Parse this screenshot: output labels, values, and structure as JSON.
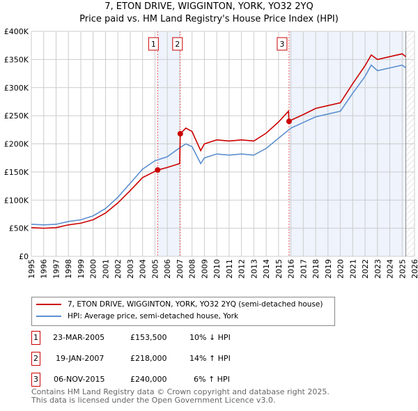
{
  "title": "7, ETON DRIVE, WIGGINTON, YORK, YO32 2YQ",
  "subtitle": "Price paid vs. HM Land Registry's House Price Index (HPI)",
  "legend": {
    "property": "7, ETON DRIVE, WIGGINTON, YORK, YO32 2YQ (semi-detached house)",
    "hpi": "HPI: Average price, semi-detached house, York"
  },
  "transactions": [
    {
      "num": "1",
      "date": "23-MAR-2005",
      "price": "£153,500",
      "hpi": "10% ↓ HPI"
    },
    {
      "num": "2",
      "date": "19-JAN-2007",
      "price": "£218,000",
      "hpi": "14% ↑ HPI"
    },
    {
      "num": "3",
      "date": "06-NOV-2015",
      "price": "£240,000",
      "hpi": "6% ↑ HPI"
    }
  ],
  "footer": {
    "line1": "Contains HM Land Registry data © Crown copyright and database right 2025.",
    "line2": "This data is licensed under the Open Government Licence v3.0."
  },
  "colors": {
    "property": "#cc0000",
    "hpi": "#5b8fd0",
    "shade": "#eef3fc"
  },
  "chart_data": {
    "type": "line",
    "xlim": [
      1995,
      2026
    ],
    "ylim": [
      0,
      400000
    ],
    "yticks": [
      0,
      50000,
      100000,
      150000,
      200000,
      250000,
      300000,
      350000,
      400000
    ],
    "ytick_labels": [
      "£0",
      "£50K",
      "£100K",
      "£150K",
      "£200K",
      "£250K",
      "£300K",
      "£350K",
      "£400K"
    ],
    "xticks": [
      1995,
      1996,
      1997,
      1998,
      1999,
      2000,
      2001,
      2002,
      2003,
      2004,
      2005,
      2006,
      2007,
      2008,
      2009,
      2010,
      2011,
      2012,
      2013,
      2014,
      2015,
      2016,
      2017,
      2018,
      2019,
      2020,
      2021,
      2022,
      2023,
      2024,
      2025,
      2026
    ],
    "grid": true,
    "series": [
      {
        "name": "HPI: Average price, semi-detached house, York",
        "x": [
          1995,
          1996,
          1997,
          1998,
          1999,
          2000,
          2001,
          2002,
          2003,
          2004,
          2005,
          2006,
          2007,
          2007.5,
          2008,
          2008.7,
          2009,
          2010,
          2011,
          2012,
          2013,
          2014,
          2015,
          2016,
          2017,
          2018,
          2019,
          2020,
          2021,
          2022,
          2022.5,
          2023,
          2024,
          2025,
          2025.3
        ],
        "y": [
          57000,
          56000,
          57000,
          62000,
          65000,
          72000,
          85000,
          105000,
          130000,
          155000,
          170000,
          177000,
          193000,
          200000,
          195000,
          165000,
          175000,
          182000,
          180000,
          182000,
          180000,
          192000,
          210000,
          228000,
          238000,
          248000,
          253000,
          258000,
          290000,
          320000,
          340000,
          330000,
          335000,
          340000,
          335000
        ]
      },
      {
        "name": "7, ETON DRIVE, WIGGINTON, YORK, YO32 2YQ (semi-detached house)",
        "x": [
          1995,
          1996,
          1997,
          1998,
          1999,
          2000,
          2001,
          2002,
          2003,
          2004,
          2005.22,
          2006,
          2007.0,
          2007.05,
          2007.5,
          2008,
          2008.7,
          2009,
          2010,
          2011,
          2012,
          2013,
          2014,
          2015,
          2015.8,
          2015.85,
          2016,
          2017,
          2018,
          2019,
          2020,
          2021,
          2022,
          2022.5,
          2023,
          2024,
          2025,
          2025.3
        ],
        "y": [
          51000,
          50000,
          51000,
          56000,
          59000,
          65000,
          77000,
          95000,
          117000,
          140000,
          153500,
          158000,
          165000,
          218000,
          228000,
          222000,
          188000,
          200000,
          207000,
          205000,
          207000,
          205000,
          219000,
          239000,
          258000,
          240000,
          242000,
          252000,
          263000,
          268000,
          273000,
          307000,
          339000,
          358000,
          350000,
          355000,
          360000,
          355000
        ]
      }
    ],
    "sales": [
      {
        "label": "1",
        "x": 2005.22,
        "y": 153500
      },
      {
        "label": "2",
        "x": 2007.05,
        "y": 218000
      },
      {
        "label": "3",
        "x": 2015.85,
        "y": 240000
      }
    ],
    "forecast_start": 2025.3
  }
}
